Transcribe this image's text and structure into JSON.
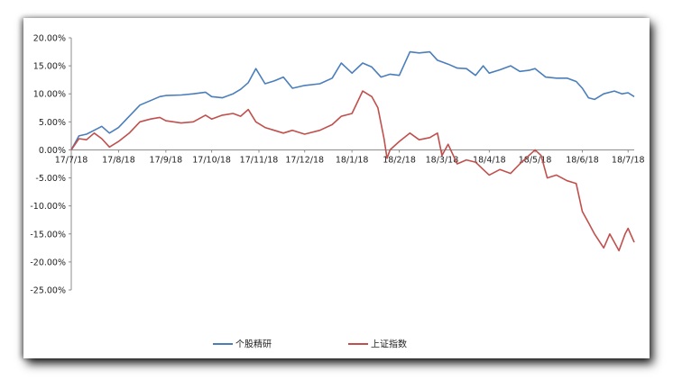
{
  "chart_data": {
    "type": "line",
    "title": "",
    "xlabel": "",
    "ylabel": "",
    "ylim": [
      -0.25,
      0.2
    ],
    "y_ticks": [
      "20.00%",
      "15.00%",
      "10.00%",
      "5.00%",
      "0.00%",
      "-5.00%",
      "-10.00%",
      "-15.00%",
      "-20.00%",
      "-25.00%"
    ],
    "x_tick_labels": [
      "17/7/18",
      "17/8/18",
      "17/9/18",
      "17/10/18",
      "17/11/18",
      "17/12/18",
      "18/1/18",
      "18/2/18",
      "18/3/18",
      "18/4/18",
      "18/5/18",
      "18/6/18",
      "18/7/18"
    ],
    "grid": false,
    "legend_position": "bottom",
    "series": [
      {
        "name": "个股精研",
        "color": "#4a7ebb",
        "points": [
          [
            "17/7/18",
            0.0
          ],
          [
            "17/7/23",
            0.025
          ],
          [
            "17/7/28",
            0.028
          ],
          [
            "17/8/2",
            0.035
          ],
          [
            "17/8/7",
            0.042
          ],
          [
            "17/8/12",
            0.03
          ],
          [
            "17/8/18",
            0.04
          ],
          [
            "17/8/25",
            0.06
          ],
          [
            "17/9/1",
            0.08
          ],
          [
            "17/9/8",
            0.088
          ],
          [
            "17/9/14",
            0.095
          ],
          [
            "17/9/18",
            0.097
          ],
          [
            "17/9/28",
            0.098
          ],
          [
            "17/10/6",
            0.1
          ],
          [
            "17/10/14",
            0.103
          ],
          [
            "17/10/18",
            0.095
          ],
          [
            "17/10/25",
            0.093
          ],
          [
            "17/11/1",
            0.1
          ],
          [
            "17/11/6",
            0.108
          ],
          [
            "17/11/11",
            0.12
          ],
          [
            "17/11/16",
            0.145
          ],
          [
            "17/11/22",
            0.118
          ],
          [
            "17/11/28",
            0.123
          ],
          [
            "17/12/4",
            0.13
          ],
          [
            "17/12/10",
            0.11
          ],
          [
            "17/12/18",
            0.115
          ],
          [
            "17/12/28",
            0.118
          ],
          [
            "18/1/5",
            0.128
          ],
          [
            "18/1/11",
            0.155
          ],
          [
            "18/1/18",
            0.137
          ],
          [
            "18/1/25",
            0.155
          ],
          [
            "18/1/31",
            0.148
          ],
          [
            "18/2/6",
            0.13
          ],
          [
            "18/2/12",
            0.135
          ],
          [
            "18/2/18",
            0.133
          ],
          [
            "18/2/25",
            0.175
          ],
          [
            "18/3/3",
            0.173
          ],
          [
            "18/3/10",
            0.175
          ],
          [
            "18/3/15",
            0.16
          ],
          [
            "18/3/22",
            0.153
          ],
          [
            "18/3/28",
            0.146
          ],
          [
            "18/4/3",
            0.145
          ],
          [
            "18/4/9",
            0.133
          ],
          [
            "18/4/14",
            0.15
          ],
          [
            "18/4/18",
            0.137
          ],
          [
            "18/4/25",
            0.143
          ],
          [
            "18/5/2",
            0.15
          ],
          [
            "18/5/8",
            0.14
          ],
          [
            "18/5/14",
            0.142
          ],
          [
            "18/5/18",
            0.145
          ],
          [
            "18/5/25",
            0.13
          ],
          [
            "18/6/1",
            0.128
          ],
          [
            "18/6/8",
            0.128
          ],
          [
            "18/6/14",
            0.122
          ],
          [
            "18/6/18",
            0.11
          ],
          [
            "18/6/22",
            0.093
          ],
          [
            "18/6/26",
            0.09
          ],
          [
            "18/7/2",
            0.1
          ],
          [
            "18/7/9",
            0.105
          ],
          [
            "18/7/14",
            0.1
          ],
          [
            "18/7/18",
            0.102
          ],
          [
            "18/7/22",
            0.095
          ]
        ]
      },
      {
        "name": "上证指数",
        "color": "#c0504d",
        "points": [
          [
            "17/7/18",
            0.0
          ],
          [
            "17/7/23",
            0.02
          ],
          [
            "17/7/28",
            0.018
          ],
          [
            "17/8/2",
            0.03
          ],
          [
            "17/8/7",
            0.02
          ],
          [
            "17/8/12",
            0.005
          ],
          [
            "17/8/18",
            0.015
          ],
          [
            "17/8/25",
            0.03
          ],
          [
            "17/9/1",
            0.05
          ],
          [
            "17/9/8",
            0.055
          ],
          [
            "17/9/14",
            0.058
          ],
          [
            "17/9/18",
            0.052
          ],
          [
            "17/9/28",
            0.048
          ],
          [
            "17/10/6",
            0.05
          ],
          [
            "17/10/14",
            0.062
          ],
          [
            "17/10/18",
            0.055
          ],
          [
            "17/10/25",
            0.062
          ],
          [
            "17/11/1",
            0.065
          ],
          [
            "17/11/6",
            0.06
          ],
          [
            "17/11/11",
            0.072
          ],
          [
            "17/11/16",
            0.05
          ],
          [
            "17/11/22",
            0.04
          ],
          [
            "17/11/28",
            0.035
          ],
          [
            "17/12/4",
            0.03
          ],
          [
            "17/12/10",
            0.035
          ],
          [
            "17/12/18",
            0.028
          ],
          [
            "17/12/28",
            0.035
          ],
          [
            "18/1/5",
            0.045
          ],
          [
            "18/1/11",
            0.06
          ],
          [
            "18/1/18",
            0.065
          ],
          [
            "18/1/25",
            0.105
          ],
          [
            "18/1/31",
            0.095
          ],
          [
            "18/2/4",
            0.075
          ],
          [
            "18/2/8",
            0.02
          ],
          [
            "18/2/10",
            -0.015
          ],
          [
            "18/2/12",
            0.0
          ],
          [
            "18/2/18",
            0.015
          ],
          [
            "18/2/25",
            0.03
          ],
          [
            "18/3/3",
            0.018
          ],
          [
            "18/3/10",
            0.022
          ],
          [
            "18/3/15",
            0.03
          ],
          [
            "18/3/18",
            -0.01
          ],
          [
            "18/3/22",
            0.01
          ],
          [
            "18/3/28",
            -0.025
          ],
          [
            "18/4/3",
            -0.018
          ],
          [
            "18/4/9",
            -0.022
          ],
          [
            "18/4/14",
            -0.035
          ],
          [
            "18/4/18",
            -0.045
          ],
          [
            "18/4/25",
            -0.035
          ],
          [
            "18/5/2",
            -0.042
          ],
          [
            "18/5/8",
            -0.025
          ],
          [
            "18/5/14",
            -0.01
          ],
          [
            "18/5/18",
            0.0
          ],
          [
            "18/5/22",
            -0.01
          ],
          [
            "18/5/26",
            -0.05
          ],
          [
            "18/6/1",
            -0.045
          ],
          [
            "18/6/8",
            -0.055
          ],
          [
            "18/6/14",
            -0.06
          ],
          [
            "18/6/18",
            -0.11
          ],
          [
            "18/6/22",
            -0.13
          ],
          [
            "18/6/26",
            -0.15
          ],
          [
            "18/7/2",
            -0.175
          ],
          [
            "18/7/6",
            -0.15
          ],
          [
            "18/7/12",
            -0.18
          ],
          [
            "18/7/16",
            -0.15
          ],
          [
            "18/7/18",
            -0.14
          ],
          [
            "18/7/22",
            -0.165
          ]
        ]
      }
    ]
  }
}
